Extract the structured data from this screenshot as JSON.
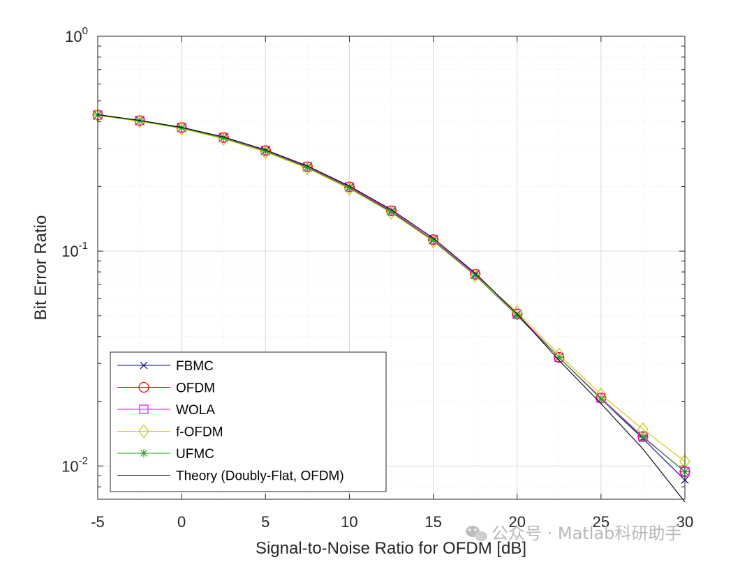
{
  "chart_data": {
    "type": "line",
    "title": "",
    "xlabel": "Signal-to-Noise Ratio for OFDM [dB]",
    "ylabel": "Bit Error Ratio",
    "xlim": [
      -5,
      30
    ],
    "ylim": [
      0.007,
      1
    ],
    "yscale": "log",
    "xticks": [
      "-5",
      "0",
      "5",
      "10",
      "15",
      "20",
      "25",
      "30"
    ],
    "yticks": [
      {
        "base": "10",
        "exp": "0",
        "value": 1
      },
      {
        "base": "10",
        "exp": "-1",
        "value": 0.1
      },
      {
        "base": "10",
        "exp": "-2",
        "value": 0.01
      }
    ],
    "grid": true,
    "minor_grid": true,
    "legend_position": "bottom-left",
    "x": [
      -5,
      -2.5,
      0,
      2.5,
      5,
      7.5,
      10,
      12.5,
      15,
      17.5,
      20,
      22.5,
      25,
      27.5,
      30
    ],
    "series": [
      {
        "name": "FBMC",
        "color": "#00008b",
        "marker": "x",
        "values": [
          0.43,
          0.405,
          0.375,
          0.338,
          0.294,
          0.246,
          0.198,
          0.153,
          0.113,
          0.078,
          0.051,
          0.032,
          0.0205,
          0.0134,
          0.0086
        ]
      },
      {
        "name": "OFDM",
        "color": "#ff0000",
        "marker": "circle",
        "values": [
          0.43,
          0.405,
          0.376,
          0.338,
          0.294,
          0.247,
          0.199,
          0.154,
          0.113,
          0.078,
          0.051,
          0.032,
          0.0207,
          0.0137,
          0.0094
        ]
      },
      {
        "name": "WOLA",
        "color": "#ff00ff",
        "marker": "square",
        "values": [
          0.43,
          0.405,
          0.376,
          0.338,
          0.294,
          0.247,
          0.199,
          0.154,
          0.113,
          0.078,
          0.051,
          0.032,
          0.0207,
          0.0137,
          0.0094
        ]
      },
      {
        "name": "f-OFDM",
        "color": "#c8c800",
        "marker": "diamond",
        "values": [
          0.428,
          0.402,
          0.372,
          0.333,
          0.289,
          0.243,
          0.195,
          0.151,
          0.111,
          0.077,
          0.052,
          0.033,
          0.0215,
          0.0148,
          0.0105
        ]
      },
      {
        "name": "UFMC",
        "color": "#22a022",
        "marker": "asterisk",
        "values": [
          0.43,
          0.404,
          0.374,
          0.336,
          0.292,
          0.245,
          0.197,
          0.152,
          0.112,
          0.077,
          0.05,
          0.032,
          0.0205,
          0.0136,
          0.0094
        ]
      },
      {
        "name": "Theory (Doubly-Flat, OFDM)",
        "color": "#000000",
        "marker": "none",
        "values": [
          0.432,
          0.406,
          0.377,
          0.34,
          0.296,
          0.249,
          0.201,
          0.156,
          0.115,
          0.079,
          0.051,
          0.031,
          0.0195,
          0.012,
          0.0068
        ]
      }
    ]
  },
  "watermark": {
    "icon": "wechat-icon",
    "text": "公众号 · Matlab科研助手"
  }
}
